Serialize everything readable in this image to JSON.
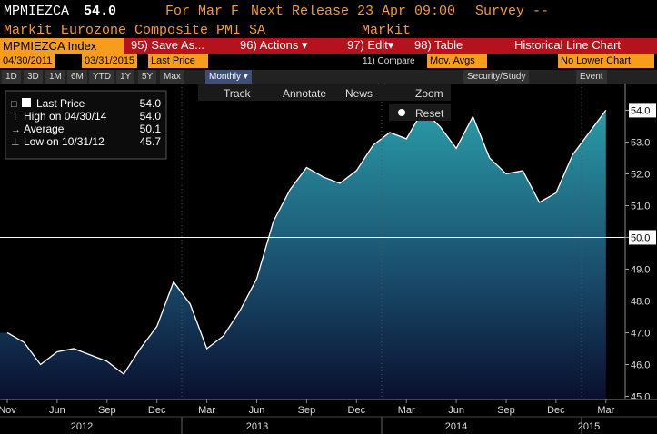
{
  "header": {
    "ticker": "MPMIEZCA",
    "price": "54.0",
    "period": "For Mar F",
    "next_release": "Next Release 23 Apr 09:00",
    "survey": "Survey --",
    "name": "Markit Eurozone Composite PMI SA",
    "source": "Markit"
  },
  "toolbar": {
    "security": "MPMIEZCA Index",
    "buttons": [
      "95) Save As...",
      "96) Actions ▾",
      "97) Edit▾",
      "98) Table"
    ],
    "view": "Historical Line Chart"
  },
  "range_bar": {
    "start": "04/30/2011",
    "end": "03/31/2015",
    "field": "Last Price",
    "compare": "11) Compare",
    "mov_avgs": "Mov. Avgs",
    "lower": "No Lower Chart"
  },
  "period_bar": {
    "periods": [
      "1D",
      "3D",
      "1M",
      "6M",
      "YTD",
      "1Y",
      "5Y",
      "Max"
    ],
    "frequency": "Monthly ▾",
    "study": "Security/Study",
    "event": "Event"
  },
  "chart_tools": {
    "tools": [
      "Track",
      "Annotate",
      "News",
      "Zoom"
    ],
    "reset": "Reset"
  },
  "legend_stats": [
    {
      "label": "Last Price",
      "value": "54.0"
    },
    {
      "label": "High on 04/30/14",
      "value": "54.0"
    },
    {
      "label": "Average",
      "value": "50.1"
    },
    {
      "label": "Low on 10/31/12",
      "value": "45.7"
    }
  ],
  "chart_data": {
    "type": "area",
    "categories": [
      "Nov",
      null,
      null,
      "Jun",
      null,
      null,
      "Sep",
      null,
      null,
      "Dec",
      null,
      null,
      "Mar",
      null,
      null,
      "Jun",
      null,
      null,
      "Sep",
      null,
      null,
      "Dec",
      null,
      null,
      "Mar",
      null,
      null,
      "Jun",
      null,
      null,
      "Sep",
      null,
      null,
      "Dec",
      null,
      null,
      "Mar"
    ],
    "years": [
      "2012",
      "2013",
      "2014",
      "2015"
    ],
    "series": [
      {
        "name": "Last Price",
        "color": "#ffffff",
        "values": [
          47.0,
          46.7,
          46.0,
          46.4,
          46.5,
          46.3,
          46.1,
          45.7,
          46.5,
          47.2,
          48.6,
          47.9,
          46.5,
          46.9,
          47.7,
          48.7,
          50.5,
          51.5,
          52.2,
          51.9,
          51.7,
          52.1,
          52.9,
          53.3,
          53.1,
          54.0,
          53.5,
          52.8,
          53.8,
          52.5,
          52.0,
          52.1,
          51.1,
          51.4,
          52.6,
          53.3,
          54.0
        ]
      }
    ],
    "ylim": [
      44.9,
      54.84
    ],
    "yticks": [
      {
        "value": 45,
        "label": "45.0"
      },
      {
        "value": 46,
        "label": "46.0"
      },
      {
        "value": 47,
        "label": "47.0"
      },
      {
        "value": 48,
        "label": "48.0"
      },
      {
        "value": 49,
        "label": "49.0"
      },
      {
        "value": 50,
        "label": "50.0"
      },
      {
        "value": 51,
        "label": "51.0"
      },
      {
        "value": 52,
        "label": "52.0"
      },
      {
        "value": 53,
        "label": "53.0"
      },
      {
        "value": 54,
        "label": "54.0"
      }
    ],
    "ref_line": 50
  }
}
